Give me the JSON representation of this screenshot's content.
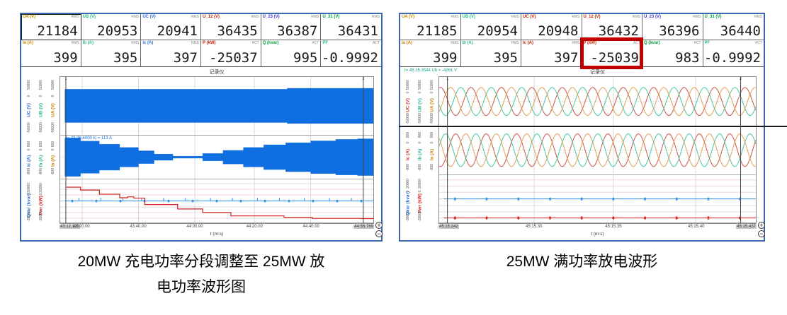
{
  "colors": {
    "panel_border": "#3a66b0",
    "highlight_box": "#c00000",
    "wave_blue": "#0f6fe0",
    "wave_red": "#d02020",
    "sine_red": "#cc5544",
    "sine_teal": "#46c8a2",
    "sine_orange": "#e2a055"
  },
  "zoom_in_label": "+",
  "zoom_out_label": "−",
  "panels": [
    {
      "caption_line1": "20MW 充电功率分段调整至 25MW 放",
      "caption_line2": "电功率波形图",
      "chart_ref": 0,
      "readouts": [
        {
          "label": "UA (V)",
          "tag": "RMS",
          "value": "21184",
          "color": "#cc8400",
          "selected": true
        },
        {
          "label": "UB (V)",
          "tag": "RMS",
          "value": "20953",
          "color": "#2db98c"
        },
        {
          "label": "UC (V)",
          "tag": "RMS",
          "value": "20941",
          "color": "#2f6fd8"
        },
        {
          "label": "U_12 (V)",
          "tag": "RMS",
          "value": "36435",
          "color": "#cc2200"
        },
        {
          "label": "U_23 (V)",
          "tag": "RMS",
          "value": "36387",
          "color": "#3a3ad0"
        },
        {
          "label": "U_31 (V)",
          "tag": "RMS",
          "value": "36431",
          "color": "#00a040"
        },
        {
          "label": "Ia (A)",
          "tag": "RMS",
          "value": "399",
          "color": "#cc8400"
        },
        {
          "label": "Ib (A)",
          "tag": "RMS",
          "value": "395",
          "color": "#2db98c"
        },
        {
          "label": "Ic (A)",
          "tag": "RMS",
          "value": "397",
          "color": "#2f6fd8"
        },
        {
          "label": "P (kW)",
          "tag": "ACT",
          "value": "-25037",
          "color": "#cc2200"
        },
        {
          "label": "Q (kvar)",
          "tag": "ACT",
          "value": "995",
          "color": "#00a040"
        },
        {
          "label": "PF",
          "tag": "ACT",
          "value": "-0.9992",
          "color": "#2db98c"
        }
      ]
    },
    {
      "caption_line1": "25MW 满功率放电波形",
      "chart_ref": 1,
      "readouts": [
        {
          "label": "UA (V)",
          "tag": "RMS",
          "value": "21185",
          "color": "#cc8400"
        },
        {
          "label": "UB (V)",
          "tag": "RMS",
          "value": "20954",
          "color": "#2db98c"
        },
        {
          "label": "UC (V)",
          "tag": "RMS",
          "value": "20948",
          "color": "#cc2200"
        },
        {
          "label": "U_12 (V)",
          "tag": "RMS",
          "value": "36432",
          "color": "#cc2200"
        },
        {
          "label": "U_23 (V)",
          "tag": "RMS",
          "value": "36396",
          "color": "#3a3ad0"
        },
        {
          "label": "U_31 (V)",
          "tag": "RMS",
          "value": "36440",
          "color": "#00a040"
        },
        {
          "label": "Ia (A)",
          "tag": "RMS",
          "value": "399",
          "color": "#cc8400"
        },
        {
          "label": "Ib (A)",
          "tag": "RMS",
          "value": "395",
          "color": "#2db98c"
        },
        {
          "label": "Ic (A)",
          "tag": "RMS",
          "value": "397",
          "color": "#cc2200"
        },
        {
          "label": "P (kW)",
          "tag": "ACT",
          "value": "-25039",
          "color": "#cc2200",
          "highlight": true
        },
        {
          "label": "Q (kvar)",
          "tag": "ACT",
          "value": "983",
          "color": "#00a040"
        },
        {
          "label": "PF",
          "tag": "ACT",
          "value": "-0.9992",
          "color": "#2db98c"
        }
      ]
    }
  ],
  "chart_data": [
    {
      "type": "line",
      "title": "记录仪",
      "xlabel": "t (m:s)",
      "x_start": "43:12.120",
      "x_end": "44:56.769",
      "x_ticks": [
        {
          "pos": 0.07,
          "label": "43:20.00"
        },
        {
          "pos": 0.25,
          "label": "43:40.00"
        },
        {
          "pos": 0.43,
          "label": "44:00.00"
        },
        {
          "pos": 0.62,
          "label": "44:20.00"
        },
        {
          "pos": 0.8,
          "label": "44:40.00"
        }
      ],
      "cursors": [
        {
          "pos": 0.018,
          "label": "1"
        },
        {
          "pos": 0.968,
          "label": "2"
        }
      ],
      "bands": [
        {
          "height": 0.4,
          "axes": [
            {
              "label": "UC (V)",
              "color": "#2f6fd8",
              "tick_top": "50000",
              "tick_mid": "0",
              "tick_bot": "-50000"
            },
            {
              "label": "UB (V)",
              "color": "#2db98c",
              "tick_top": "50000",
              "tick_mid": "0",
              "tick_bot": "-50000"
            },
            {
              "label": "UA (V)",
              "color": "#cc8400",
              "tick_top": "50000",
              "tick_mid": "0",
              "tick_bot": "-50000"
            }
          ],
          "series": [
            {
              "kind": "envelope",
              "color": "#0f6fe0",
              "steps": [
                [
                  0.015,
                  0.6
                ],
                [
                  0.72,
                  0.6
                ],
                [
                  0.725,
                  0.635
                ]
              ]
            }
          ]
        },
        {
          "height": 0.3,
          "annotation": {
            "text": "t= 43:36.4000  Ic = 113 A",
            "color": "#0f6fe0"
          },
          "axes": [
            {
              "label": "Ic (A)",
              "color": "#2f6fd8",
              "tick_top": "800",
              "tick_mid": "0",
              "tick_bot": "-800"
            },
            {
              "label": "Ib (A)",
              "color": "#2db98c",
              "tick_top": "800",
              "tick_mid": "0",
              "tick_bot": "-800"
            },
            {
              "label": "Ia (A)",
              "color": "#cc8400",
              "tick_top": "800",
              "tick_mid": "0",
              "tick_bot": "-800"
            }
          ],
          "series": [
            {
              "kind": "envelope",
              "color": "#0f6fe0",
              "steps": [
                [
                  0.015,
                  0.93
                ],
                [
                  0.065,
                  0.78
                ],
                [
                  0.125,
                  0.63
                ],
                [
                  0.19,
                  0.47
                ],
                [
                  0.25,
                  0.31
                ],
                [
                  0.3,
                  0.15
                ],
                [
                  0.36,
                  0.05
                ],
                [
                  0.455,
                  0.18
                ],
                [
                  0.52,
                  0.33
                ],
                [
                  0.585,
                  0.47
                ],
                [
                  0.65,
                  0.6
                ],
                [
                  0.72,
                  0.7
                ],
                [
                  0.8,
                  0.79
                ],
                [
                  0.88,
                  0.86
                ],
                [
                  0.95,
                  0.89
                ]
              ]
            }
          ]
        },
        {
          "height": 0.3,
          "grid_rows": true,
          "axes": [
            {
              "label": "Qvar (kvar)",
              "color": "#2f6fd8",
              "tick_top": "30000",
              "tick_mid": "0",
              "tick_bot": "-30000"
            },
            {
              "label": "Pwr (kW)",
              "color": "#d02020",
              "tick_top": "30000",
              "tick_mid": "0",
              "tick_bot": "-30000"
            }
          ],
          "series": [
            {
              "kind": "dotline",
              "color": "#2f8fe8",
              "ylim": 30000,
              "value": 0,
              "dots": 13,
              "spikes": [
                0.06,
                0.13,
                0.2,
                0.26,
                0.33,
                0.4,
                0.48,
                0.55,
                0.63,
                0.7,
                0.78,
                0.86,
                0.93
              ]
            },
            {
              "kind": "step",
              "color": "#d02020",
              "ylim": 30000,
              "points": [
                [
                  0.02,
                  20000
                ],
                [
                  0.065,
                  15800
                ],
                [
                  0.125,
                  9800
                ],
                [
                  0.19,
                  4700
                ],
                [
                  0.215,
                  6000
                ],
                [
                  0.235,
                  4200
                ],
                [
                  0.27,
                  -5200
                ],
                [
                  0.375,
                  -11600
                ],
                [
                  0.455,
                  -16700
                ],
                [
                  0.545,
                  -21600
                ],
                [
                  0.715,
                  -23900
                ],
                [
                  0.805,
                  -25200
                ],
                [
                  0.96,
                  -25500
                ]
              ]
            }
          ]
        }
      ]
    },
    {
      "type": "line",
      "title": "记录仪",
      "xlabel": "t (m:s)",
      "x_start": "45:15.242",
      "x_end": "45:15.437",
      "annotation_top": {
        "text": "t= 45:15.3544  Ub = -4261 V",
        "color": "#17a689"
      },
      "edge_line": true,
      "x_ticks": [
        {
          "pos": 0.3,
          "label": "45:15.30"
        },
        {
          "pos": 0.55,
          "label": "45:15.35"
        },
        {
          "pos": 0.81,
          "label": "45:15.40"
        }
      ],
      "cursors": [
        {
          "pos": 0.026,
          "label": "1"
        },
        {
          "pos": 0.952,
          "label": "2"
        }
      ],
      "bands": [
        {
          "height": 0.34,
          "axes": [
            {
              "label": "UC (V)",
              "color": "#cc4433",
              "tick_top": "50000",
              "tick_mid": "0",
              "tick_bot": "-50000"
            },
            {
              "label": "UB (V)",
              "color": "#2db98c",
              "tick_top": "50000",
              "tick_mid": "0",
              "tick_bot": "-50000"
            },
            {
              "label": "UA (V)",
              "color": "#cc8400",
              "tick_top": "50000",
              "tick_mid": "0",
              "tick_bot": "-50000"
            }
          ],
          "series": [
            {
              "kind": "sine3",
              "cycles": 10.4,
              "amp": 0.6,
              "colors": [
                "#cc5544",
                "#46c8a2",
                "#e2a055"
              ],
              "phases": [
                1.3,
                3.39,
                5.49
              ]
            }
          ]
        },
        {
          "height": 0.33,
          "axes": [
            {
              "label": "Ic (A)",
              "color": "#cc4433",
              "tick_top": "800",
              "tick_mid": "0",
              "tick_bot": "-800"
            },
            {
              "label": "Ib (A)",
              "color": "#2db98c",
              "tick_top": "800",
              "tick_mid": "0",
              "tick_bot": "-800"
            },
            {
              "label": "Ia (A)",
              "color": "#cc8400",
              "tick_top": "800",
              "tick_mid": "0",
              "tick_bot": "-800"
            }
          ],
          "series": [
            {
              "kind": "sine3",
              "cycles": 10.4,
              "amp": 0.72,
              "colors": [
                "#cc5544",
                "#46c8a2",
                "#e2a055"
              ],
              "phases": [
                4.44,
                0.25,
                2.35
              ]
            }
          ]
        },
        {
          "height": 0.33,
          "grid_rows": true,
          "axes": [
            {
              "label": "Qvar (kvar)",
              "color": "#2f6fd8",
              "tick_top": "30000",
              "tick_mid": "0",
              "tick_bot": "-30000"
            },
            {
              "label": "Pwr (kW)",
              "color": "#d02020",
              "tick_top": "30000",
              "tick_mid": "0",
              "tick_bot": "-30000"
            }
          ],
          "series": [
            {
              "kind": "dotline",
              "color": "#2f8fe8",
              "ylim": 30000,
              "value": 0,
              "dots": 10
            },
            {
              "kind": "dotline",
              "color": "#d02020",
              "ylim": 30000,
              "value": -25000,
              "dots": 10
            }
          ]
        }
      ]
    }
  ]
}
